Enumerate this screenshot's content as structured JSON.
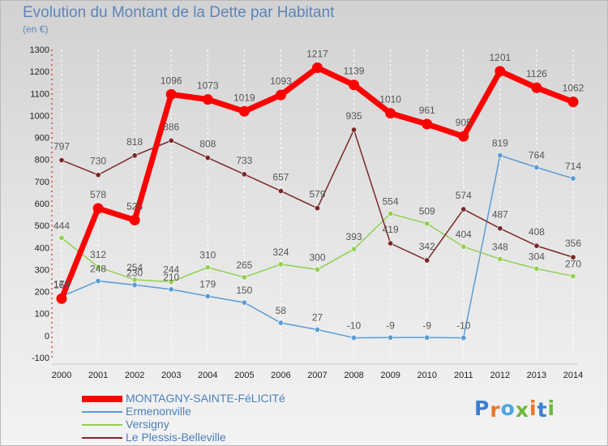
{
  "header": {
    "title": "Evolution du Montant de la Dette par Habitant",
    "subtitle": "(en €)"
  },
  "logo": {
    "text": "Proxiti",
    "letter_colors": [
      "#3a7fd0",
      "#e8762a",
      "#4aa6e0",
      "#6ab83c",
      "#e8762a",
      "#3a7fd0",
      "#6ab83c"
    ]
  },
  "chart_data": {
    "type": "line",
    "title": "Evolution du Montant de la Dette par Habitant",
    "subtitle": "(en €)",
    "xlabel": "",
    "ylabel": "",
    "x": [
      2000,
      2001,
      2002,
      2003,
      2004,
      2005,
      2006,
      2007,
      2008,
      2009,
      2010,
      2011,
      2012,
      2013,
      2014
    ],
    "ylim": [
      -100,
      1300
    ],
    "yticks": [
      -100,
      0,
      100,
      200,
      300,
      400,
      500,
      600,
      700,
      800,
      900,
      1000,
      1100,
      1200,
      1300
    ],
    "grid": "vertical dashed",
    "legend": "bottom-left",
    "series": [
      {
        "name": "MONTAGNY-SAINTE-FéLICITé",
        "color": "#ff0000",
        "values": [
          168,
          578,
          525,
          1096,
          1073,
          1019,
          1093,
          1217,
          1139,
          1010,
          961,
          905,
          1201,
          1126,
          1062
        ],
        "labels": [
          "168",
          "578",
          "525",
          "1096",
          "1073",
          "1019",
          "1093",
          "1217",
          "1139",
          "1010",
          "961",
          "905",
          "1201",
          "1126",
          "1062"
        ]
      },
      {
        "name": "Ermenonville",
        "color": "#5b9bd5",
        "values": [
          178,
          248,
          230,
          210,
          179,
          150,
          58,
          27,
          -10,
          -9,
          -9,
          -10,
          819,
          764,
          714
        ],
        "labels": [
          "178",
          "248",
          "230",
          "210",
          "179",
          "150",
          "58",
          "27",
          "-10",
          "-9",
          "-9",
          "-10",
          "819",
          "764",
          "714"
        ]
      },
      {
        "name": "Versigny",
        "color": "#92d050",
        "values": [
          444,
          312,
          254,
          244,
          310,
          265,
          324,
          300,
          393,
          554,
          509,
          404,
          348,
          304,
          270
        ],
        "labels": [
          "444",
          "312",
          "254",
          "244",
          "310",
          "265",
          "324",
          "300",
          "393",
          "554",
          "509",
          "404",
          "348",
          "304",
          "270"
        ]
      },
      {
        "name": "Le Plessis-Belleville",
        "color": "#7b2828",
        "values": [
          797,
          730,
          818,
          886,
          808,
          733,
          657,
          579,
          935,
          419,
          342,
          574,
          487,
          408,
          356
        ],
        "labels": [
          "797",
          "730",
          "818",
          "886",
          "808",
          "733",
          "657",
          "579",
          "935",
          "419",
          "342",
          "574",
          "487",
          "408",
          "356"
        ]
      }
    ]
  }
}
